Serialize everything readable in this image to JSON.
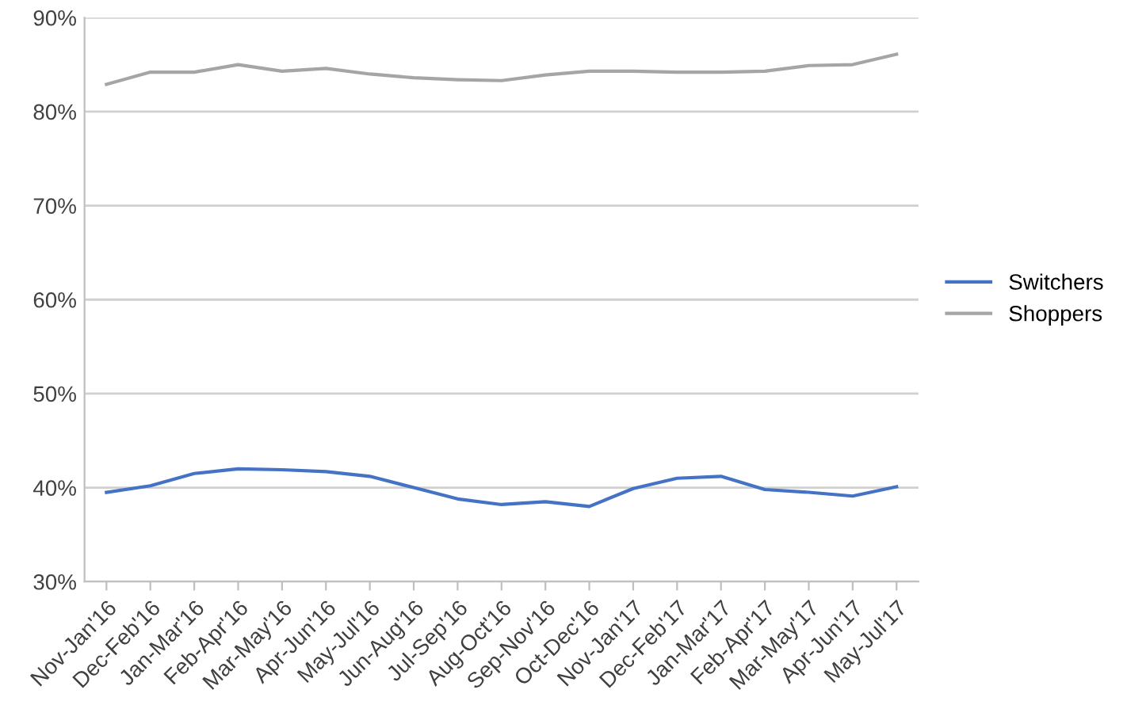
{
  "chart_data": {
    "type": "line",
    "categories": [
      "Nov-Jan'16",
      "Dec-Feb'16",
      "Jan-Mar'16",
      "Feb-Apr'16",
      "Mar-May'16",
      "Apr-Jun'16",
      "May-Jul'16",
      "Jun-Aug'16",
      "Jul-Sep'16",
      "Aug-Oct'16",
      "Sep-Nov'16",
      "Oct-Dec'16",
      "Nov-Jan'17",
      "Dec-Feb'17",
      "Jan-Mar'17",
      "Feb-Apr'17",
      "Mar-May'17",
      "Apr-Jun'17",
      "May-Jul'17"
    ],
    "series": [
      {
        "name": "Switchers",
        "color": "#4472c4",
        "values": [
          39.5,
          40.2,
          41.5,
          42.0,
          41.9,
          41.7,
          41.2,
          40.0,
          38.8,
          38.2,
          38.5,
          38.0,
          39.9,
          41.0,
          41.2,
          39.8,
          39.5,
          39.1,
          40.1
        ]
      },
      {
        "name": "Shoppers",
        "color": "#a5a5a5",
        "values": [
          82.9,
          84.2,
          84.2,
          85.0,
          84.3,
          84.6,
          84.0,
          83.6,
          83.4,
          83.3,
          83.9,
          84.3,
          84.3,
          84.2,
          84.2,
          84.3,
          84.9,
          85.0,
          86.1
        ]
      }
    ],
    "ylim": [
      30,
      90
    ],
    "yticks": [
      {
        "value": 30,
        "label": "30%"
      },
      {
        "value": 40,
        "label": "40%"
      },
      {
        "value": 50,
        "label": "50%"
      },
      {
        "value": 60,
        "label": "60%"
      },
      {
        "value": 70,
        "label": "70%"
      },
      {
        "value": 80,
        "label": "80%"
      },
      {
        "value": 90,
        "label": "90%"
      }
    ],
    "grid": "y",
    "legend": "right",
    "marker": "none",
    "line_style": "solid"
  }
}
